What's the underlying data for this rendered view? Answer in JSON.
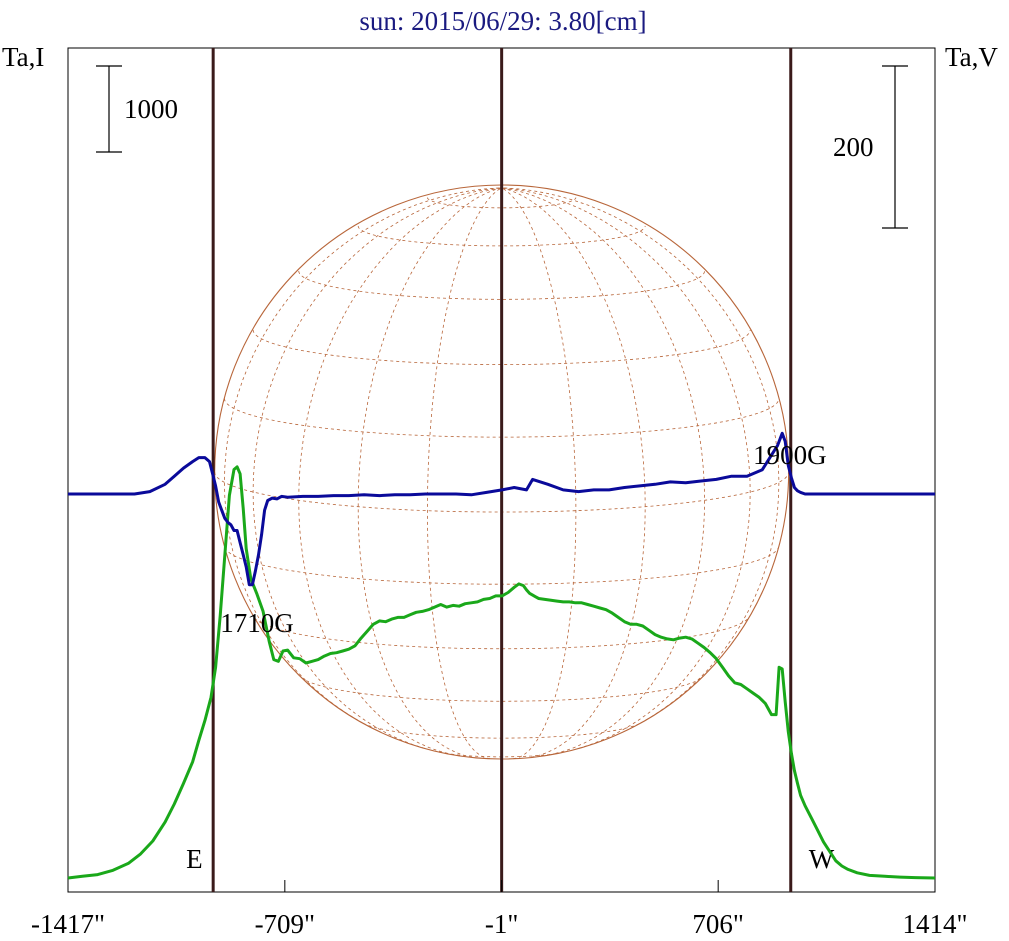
{
  "chart_data": {
    "type": "line",
    "title": "sun: 2015/06/29: 3.80[cm]",
    "left_axis_label": "Ta,I",
    "right_axis_label": "Ta,V",
    "x_ticks": [
      "-1417\"",
      "-709\"",
      "-1\"",
      "706\"",
      "1414\""
    ],
    "x_tick_values": [
      -1417,
      -709,
      -1,
      706,
      1414
    ],
    "xlim": [
      -1417,
      1414
    ],
    "scale_bar_I": "1000",
    "scale_bar_V": "200",
    "limb_markers": [
      {
        "label": "E",
        "x": -943
      },
      {
        "label": "",
        "x": -1
      },
      {
        "label": "W",
        "x": 943
      }
    ],
    "annotations": [
      {
        "text": "1710G",
        "x": -800,
        "series": "V"
      },
      {
        "text": "1900G",
        "x": 940,
        "series": "V"
      }
    ],
    "colors": {
      "title": "#1a1a80",
      "intensity": "#1aa81a",
      "polarization": "#0a0a9a",
      "limb_lines": "#3a1a1a",
      "disk_grid": "#b8663a",
      "frame": "#000000"
    },
    "series": [
      {
        "key": "intensity",
        "units_per_bar": 1000,
        "x": [
          -1417,
          -1370,
          -1320,
          -1270,
          -1220,
          -1180,
          -1140,
          -1100,
          -1070,
          -1040,
          -1010,
          -990,
          -970,
          -950,
          -935,
          -920,
          -905,
          -890,
          -875,
          -865,
          -855,
          -845,
          -835,
          -820,
          -800,
          -780,
          -760,
          -745,
          -730,
          -715,
          -700,
          -680,
          -660,
          -640,
          -620,
          -600,
          -580,
          -560,
          -540,
          -520,
          -500,
          -480,
          -460,
          -440,
          -420,
          -400,
          -380,
          -360,
          -340,
          -320,
          -300,
          -280,
          -260,
          -240,
          -220,
          -200,
          -180,
          -160,
          -140,
          -120,
          -100,
          -80,
          -60,
          -40,
          -20,
          0,
          20,
          40,
          55,
          70,
          80,
          90,
          100,
          110,
          120,
          140,
          160,
          180,
          200,
          220,
          240,
          260,
          280,
          300,
          320,
          340,
          360,
          380,
          400,
          420,
          440,
          460,
          480,
          500,
          520,
          540,
          560,
          580,
          600,
          620,
          640,
          660,
          680,
          700,
          720,
          740,
          760,
          780,
          800,
          820,
          840,
          860,
          880,
          895,
          905,
          915,
          925,
          935,
          945,
          955,
          965,
          975,
          990,
          1010,
          1030,
          1050,
          1070,
          1090,
          1110,
          1130,
          1160,
          1200,
          1250,
          1300,
          1350,
          1414
        ],
        "values": [
          0,
          20,
          40,
          90,
          170,
          280,
          430,
          650,
          860,
          1100,
          1350,
          1600,
          1830,
          2100,
          2450,
          3050,
          3750,
          4450,
          4750,
          4780,
          4700,
          4300,
          3830,
          3480,
          3300,
          3100,
          2750,
          2540,
          2520,
          2640,
          2650,
          2560,
          2550,
          2500,
          2520,
          2540,
          2580,
          2610,
          2620,
          2640,
          2660,
          2700,
          2790,
          2870,
          2950,
          2990,
          2980,
          3010,
          3030,
          3030,
          3060,
          3090,
          3100,
          3120,
          3150,
          3180,
          3150,
          3170,
          3160,
          3190,
          3200,
          3210,
          3240,
          3250,
          3280,
          3280,
          3320,
          3380,
          3420,
          3400,
          3350,
          3310,
          3290,
          3270,
          3250,
          3240,
          3230,
          3220,
          3210,
          3210,
          3200,
          3200,
          3180,
          3160,
          3140,
          3120,
          3080,
          3030,
          2980,
          2950,
          2950,
          2930,
          2880,
          2830,
          2800,
          2780,
          2770,
          2790,
          2800,
          2780,
          2730,
          2680,
          2620,
          2550,
          2450,
          2350,
          2270,
          2250,
          2200,
          2150,
          2100,
          2030,
          1900,
          1900,
          2450,
          2430,
          2050,
          1700,
          1450,
          1250,
          1100,
          960,
          840,
          700,
          560,
          420,
          310,
          200,
          140,
          100,
          60,
          30,
          20,
          10,
          5,
          0
        ]
      },
      {
        "key": "polarization",
        "units_per_bar": 200,
        "x": [
          -1417,
          -1300,
          -1200,
          -1150,
          -1100,
          -1070,
          -1040,
          -1010,
          -990,
          -970,
          -955,
          -945,
          -935,
          -925,
          -915,
          -905,
          -895,
          -885,
          -875,
          -865,
          -855,
          -845,
          -835,
          -825,
          -815,
          -805,
          -795,
          -785,
          -775,
          -765,
          -750,
          -735,
          -720,
          -700,
          -650,
          -600,
          -550,
          -500,
          -450,
          -400,
          -350,
          -300,
          -250,
          -200,
          -150,
          -100,
          -50,
          0,
          40,
          80,
          100,
          150,
          200,
          250,
          300,
          350,
          400,
          450,
          500,
          550,
          600,
          650,
          700,
          750,
          800,
          850,
          880,
          900,
          915,
          925,
          935,
          945,
          955,
          965,
          975,
          990,
          1010,
          1030,
          1050,
          1070,
          1100,
          1150,
          1200,
          1250,
          1300,
          1350,
          1414
        ],
        "values": [
          0,
          0,
          0,
          3,
          12,
          22,
          32,
          40,
          45,
          45,
          40,
          25,
          10,
          -10,
          -20,
          -30,
          -35,
          -38,
          -45,
          -45,
          -60,
          -75,
          -90,
          -112,
          -112,
          -95,
          -75,
          -50,
          -20,
          -8,
          -5,
          -6,
          -3,
          -4,
          -3,
          -3,
          -2,
          -2,
          -1,
          -2,
          -1,
          -1,
          0,
          0,
          0,
          -1,
          2,
          5,
          8,
          5,
          18,
          12,
          5,
          3,
          5,
          5,
          8,
          10,
          12,
          15,
          14,
          16,
          18,
          22,
          22,
          30,
          48,
          60,
          75,
          65,
          35,
          20,
          8,
          4,
          2,
          0,
          0,
          0,
          0,
          0,
          0,
          0,
          0,
          0,
          0,
          0,
          0
        ]
      }
    ]
  }
}
